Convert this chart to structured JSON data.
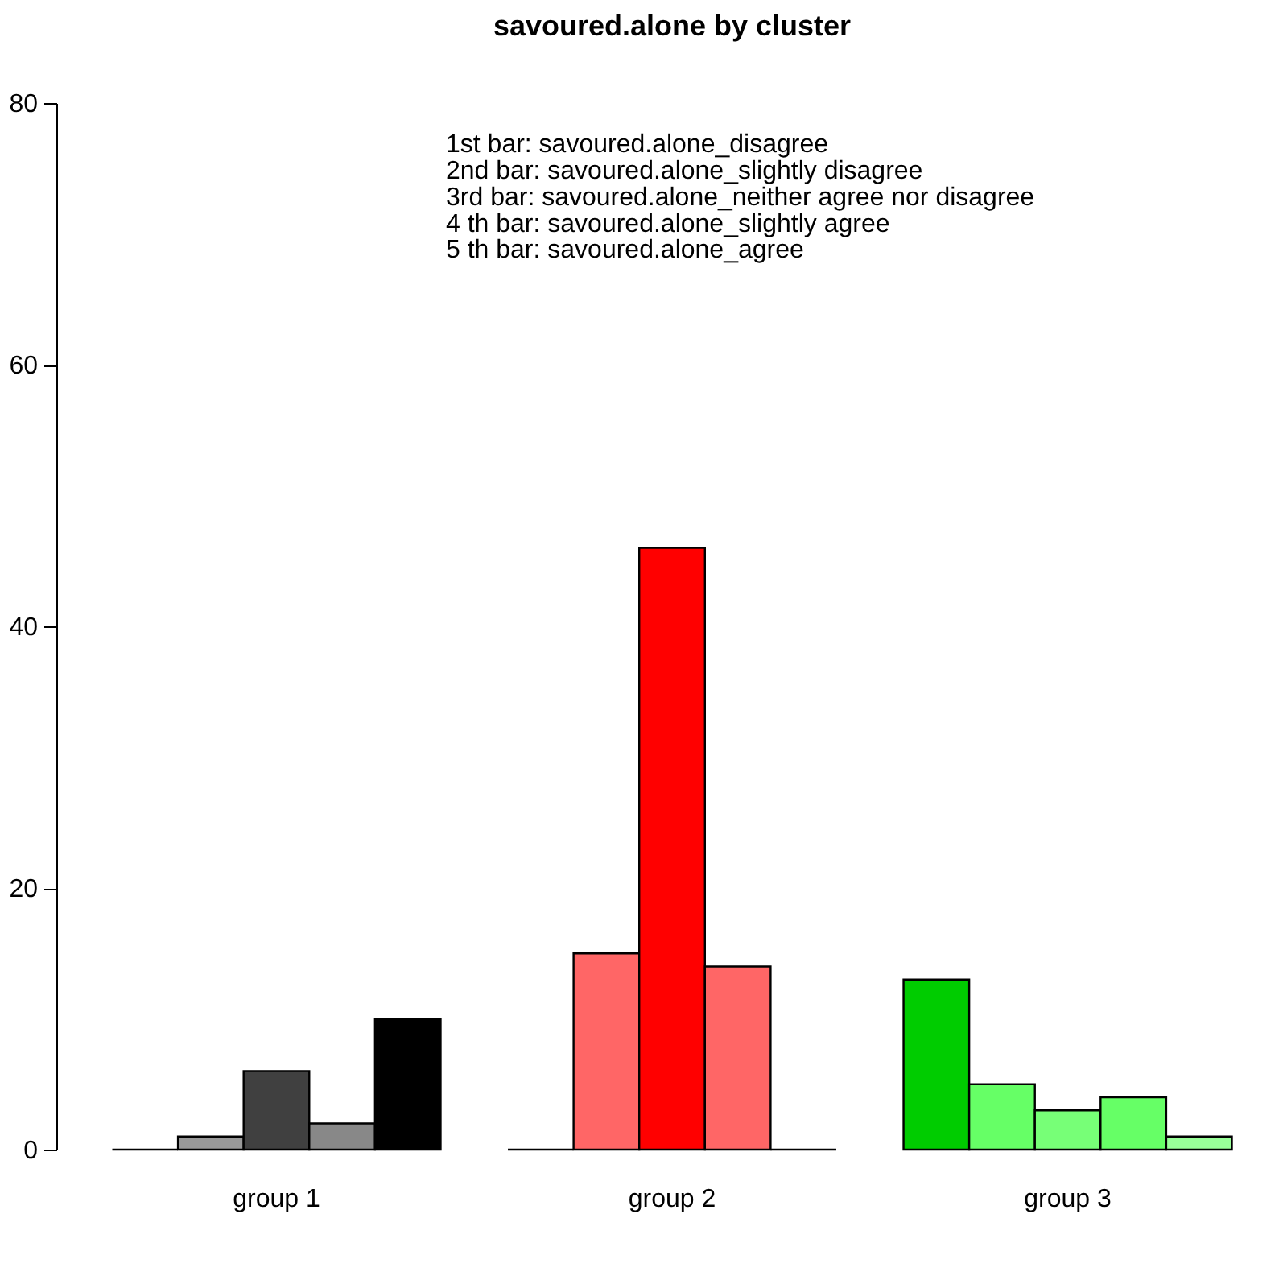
{
  "chart_data": {
    "type": "bar",
    "title": "savoured.alone by cluster",
    "categories": [
      "group 1",
      "group 2",
      "group 3"
    ],
    "series": [
      {
        "values": [
          0,
          0,
          13
        ],
        "colors": [
          "#000000",
          "#000000",
          "#00cc00"
        ]
      },
      {
        "values": [
          1,
          15,
          5
        ],
        "colors": [
          "#999999",
          "#ff6666",
          "#66ff66"
        ]
      },
      {
        "values": [
          6,
          46,
          3
        ],
        "colors": [
          "#404040",
          "#ff0000",
          "#77ff77"
        ]
      },
      {
        "values": [
          2,
          14,
          4
        ],
        "colors": [
          "#888888",
          "#ff6666",
          "#66ff66"
        ]
      },
      {
        "values": [
          10,
          0,
          1
        ],
        "colors": [
          "#000000",
          "#000000",
          "#99ff99"
        ]
      }
    ],
    "ylim": [
      0,
      80
    ],
    "yticks": [
      0,
      20,
      40,
      60,
      80
    ],
    "annotations": [
      "1st bar: savoured.alone_disagree",
      "2nd bar: savoured.alone_slightly disagree",
      "3rd bar: savoured.alone_neither agree nor disagree",
      "4 th bar: savoured.alone_slightly agree",
      "5 th bar: savoured.alone_agree"
    ]
  }
}
